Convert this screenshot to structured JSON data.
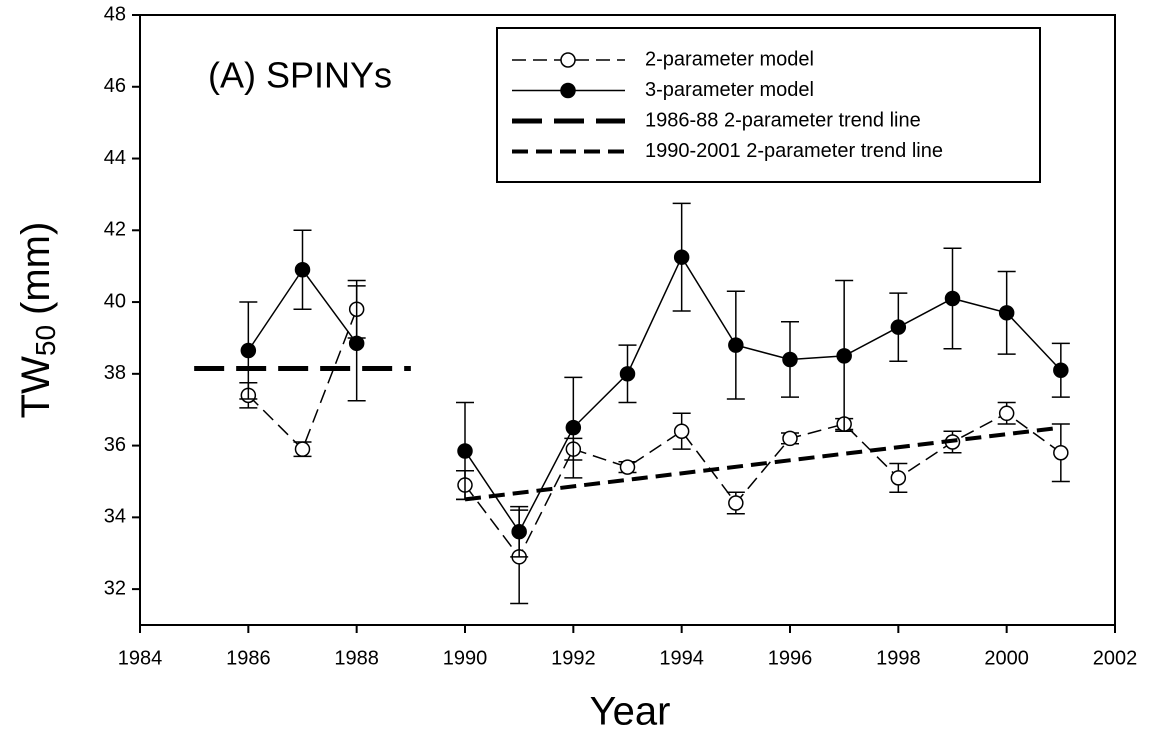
{
  "chart_data": {
    "type": "line",
    "title": "(A) SPINYs",
    "x_label": "Year",
    "y_label": {
      "text": "TW",
      "subscript": "50",
      "unit": "(mm)"
    },
    "xlim": [
      1984,
      2002
    ],
    "xticks": [
      1984,
      1986,
      1988,
      1990,
      1992,
      1994,
      1996,
      1998,
      2000,
      2002
    ],
    "ylim": [
      31,
      48
    ],
    "yticks": [
      32,
      34,
      36,
      38,
      40,
      42,
      44,
      46,
      48
    ],
    "legend": "top-right",
    "series": [
      {
        "name": "2-parameter model",
        "color": "#000000",
        "line_style": "thin-dashed",
        "marker": "open",
        "x": [
          1986,
          1987,
          1988,
          1989,
          1990,
          1991,
          1992,
          1993,
          1994,
          1995,
          1996,
          1997,
          1998,
          1999,
          2000,
          2001
        ],
        "values": [
          37.4,
          35.9,
          39.8,
          null,
          34.9,
          32.9,
          35.9,
          35.4,
          36.4,
          34.4,
          36.2,
          36.6,
          35.1,
          36.1,
          36.9,
          35.8
        ],
        "errors": [
          0.35,
          0.2,
          0.8,
          null,
          0.4,
          1.3,
          0.3,
          0.15,
          0.5,
          0.3,
          0.15,
          0.15,
          0.4,
          0.3,
          0.3,
          0.8
        ]
      },
      {
        "name": "3-parameter model",
        "color": "#000000",
        "line_style": "solid",
        "marker": "filled",
        "x": [
          1986,
          1987,
          1988,
          1989,
          1990,
          1991,
          1992,
          1993,
          1994,
          1995,
          1996,
          1997,
          1998,
          1999,
          2000,
          2001
        ],
        "values": [
          38.65,
          40.9,
          38.85,
          null,
          35.85,
          33.6,
          36.5,
          38.0,
          41.25,
          38.8,
          38.4,
          38.5,
          39.3,
          40.1,
          39.7,
          38.1
        ],
        "errors": [
          1.35,
          1.1,
          1.6,
          null,
          1.35,
          0.7,
          1.4,
          0.8,
          1.5,
          1.5,
          1.05,
          2.1,
          0.95,
          1.4,
          1.15,
          0.75
        ]
      },
      {
        "name": "1986-88 2-parameter trend line",
        "color": "#000000",
        "line_style": "thick-long-dashed",
        "marker": "none",
        "x": [
          1985,
          1989
        ],
        "values": [
          38.15,
          38.15
        ]
      },
      {
        "name": "1990-2001 2-parameter trend line",
        "color": "#000000",
        "line_style": "thick-short-dashed",
        "marker": "none",
        "x": [
          1990,
          2001
        ],
        "values": [
          34.5,
          36.5
        ]
      }
    ]
  }
}
